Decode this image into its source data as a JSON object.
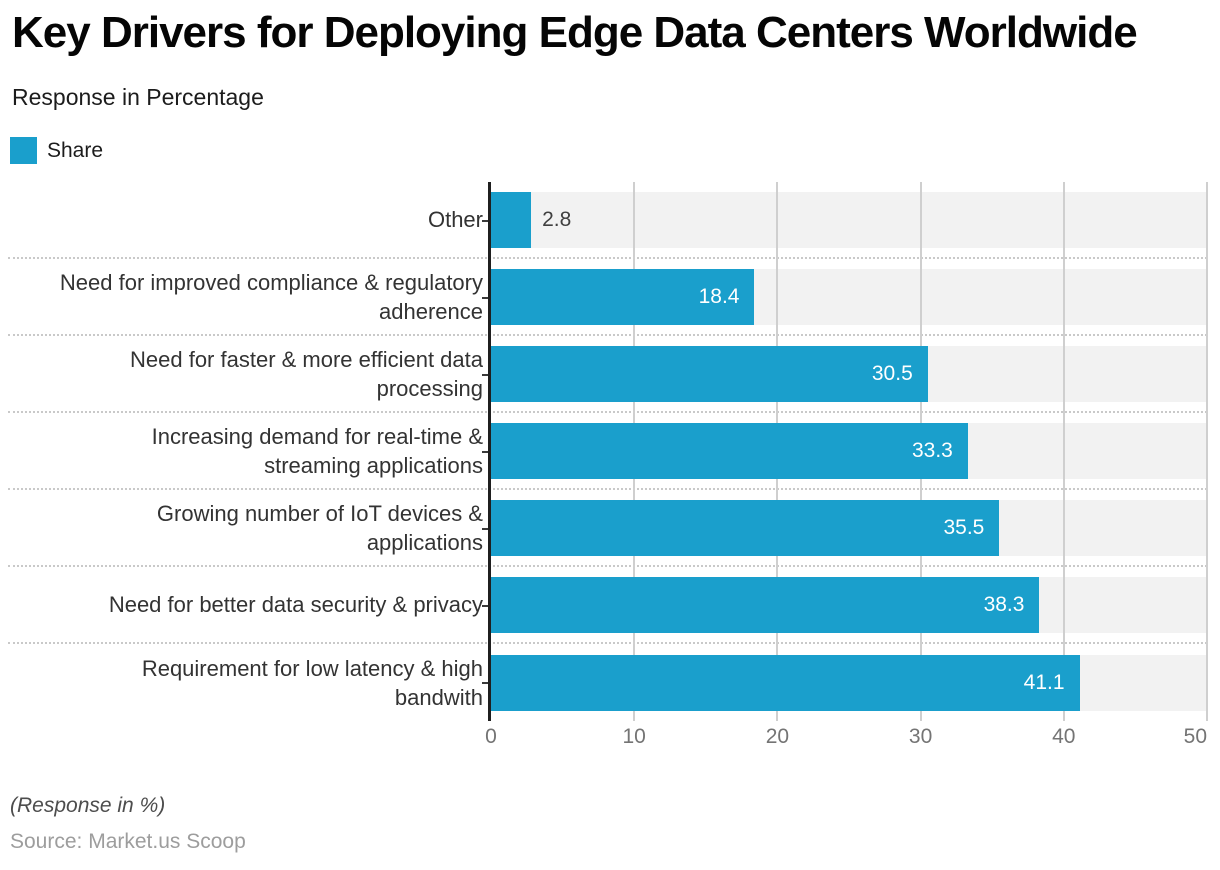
{
  "header": {
    "title": "Key Drivers for Deploying Edge Data Centers Worldwide",
    "subtitle": "Response in Percentage"
  },
  "legend": {
    "label": "Share"
  },
  "chart_data": {
    "type": "bar",
    "orientation": "horizontal",
    "series_name": "Share",
    "categories": [
      "Other",
      "Need for improved compliance & regulatory adherence",
      "Need for faster & more efficient data processing",
      "Increasing demand for real-time & streaming applications",
      "Growing number of IoT devices & applications",
      "Need for better data security & privacy",
      "Requirement for low latency & high bandwith"
    ],
    "label_lines": [
      [
        "Other"
      ],
      [
        "Need for improved compliance & regulatory",
        "adherence"
      ],
      [
        "Need for faster & more efficient data",
        "processing"
      ],
      [
        "Increasing demand for real-time &",
        "streaming applications"
      ],
      [
        "Growing number of IoT devices &",
        "applications"
      ],
      [
        "Need for better data security & privacy"
      ],
      [
        "Requirement for low latency & high",
        "bandwith"
      ]
    ],
    "values": [
      2.8,
      18.4,
      30.5,
      33.3,
      35.5,
      38.3,
      41.1
    ],
    "value_labels": [
      "2.8",
      "18.4",
      "30.5",
      "33.3",
      "35.5",
      "38.3",
      "41.1"
    ],
    "value_label_outside": [
      true,
      false,
      false,
      false,
      false,
      false,
      false
    ],
    "xlabel": "",
    "ylabel": "",
    "xlim": [
      0,
      50
    ],
    "x_ticks": [
      "0",
      "10",
      "20",
      "30",
      "40",
      "50"
    ],
    "grid": true,
    "legend_position": "top-left",
    "colors": {
      "bar": "#1A9FCC",
      "track": "#F2F2F2",
      "grid": "#CFCFCF",
      "axis": "#1F1F1F",
      "value_inside": "#FFFFFF",
      "value_outside": "#404040"
    }
  },
  "footer": {
    "note": "(Response in %)",
    "source": "Source: Market.us Scoop"
  }
}
